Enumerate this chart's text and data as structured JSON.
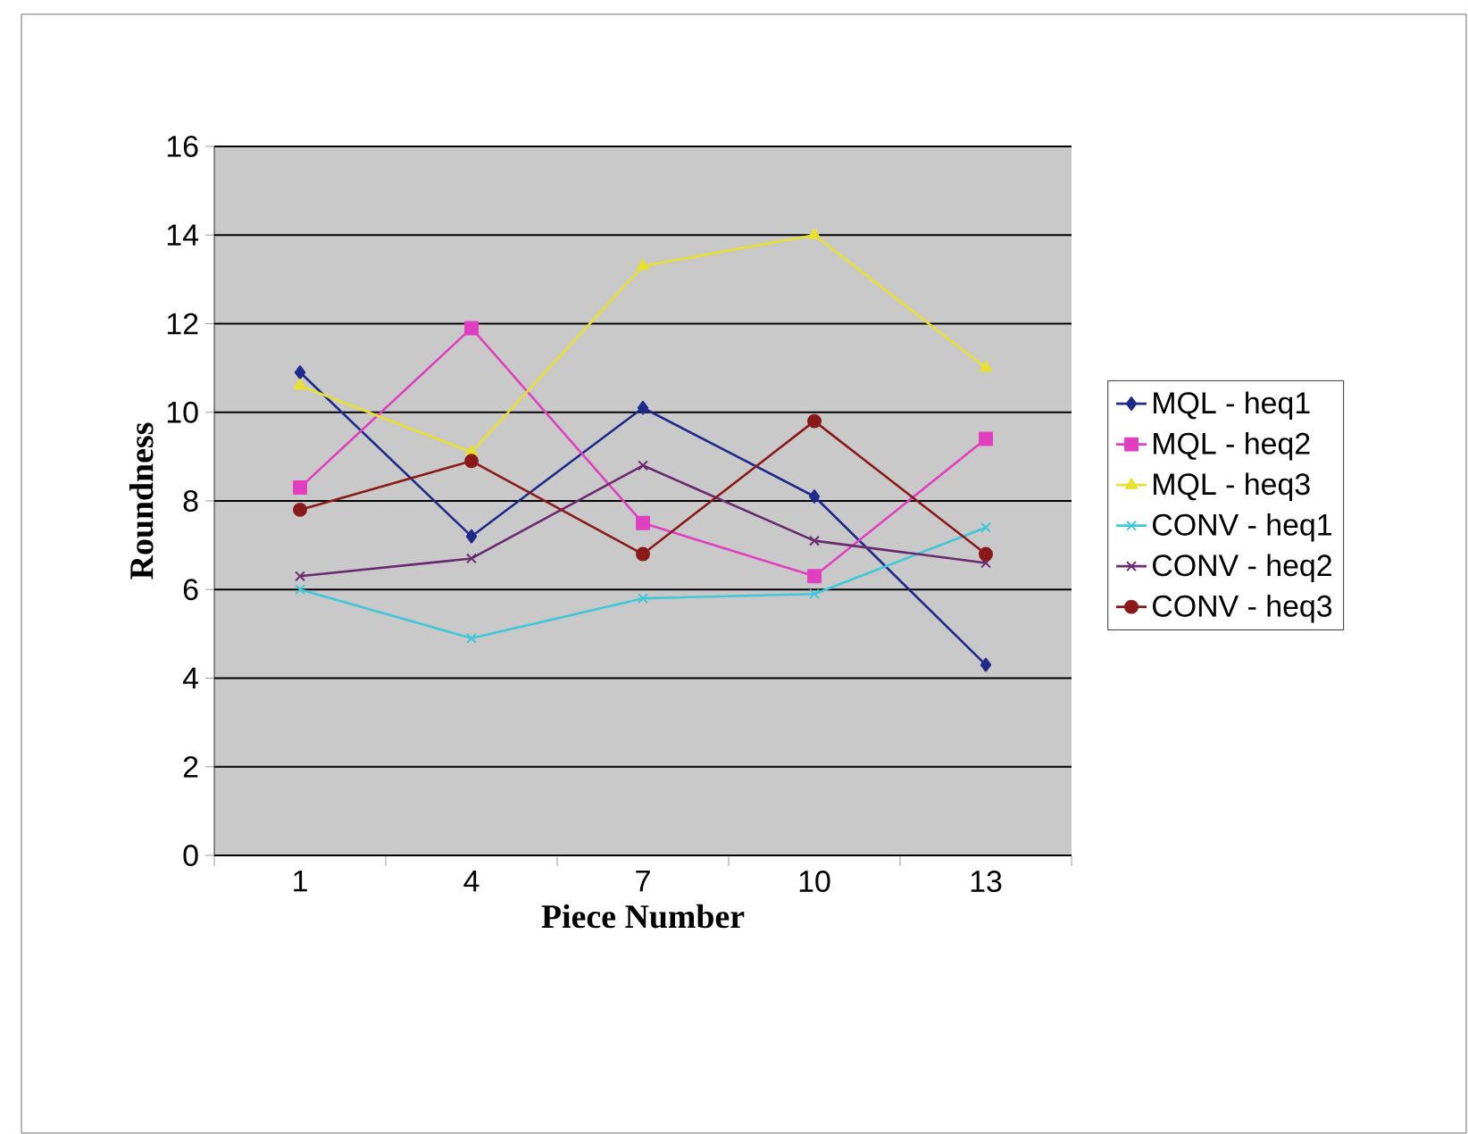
{
  "chart_data": {
    "type": "line",
    "xlabel": "Piece Number",
    "ylabel": "Roundness",
    "categories": [
      "1",
      "4",
      "7",
      "10",
      "13"
    ],
    "series": [
      {
        "name": "MQL - heq1",
        "color": "#1f2a8a",
        "marker": "diamond",
        "values": [
          10.9,
          7.2,
          10.1,
          8.1,
          4.3
        ]
      },
      {
        "name": "MQL - heq2",
        "color": "#e040c0",
        "marker": "square",
        "values": [
          8.3,
          11.9,
          7.5,
          6.3,
          9.4
        ]
      },
      {
        "name": "MQL - heq3",
        "color": "#e8e030",
        "marker": "triangle",
        "values": [
          10.6,
          9.1,
          13.3,
          14.0,
          11.0
        ]
      },
      {
        "name": "CONV - heq1",
        "color": "#40c8d8",
        "marker": "cross",
        "values": [
          6.0,
          4.9,
          5.8,
          5.9,
          7.4
        ]
      },
      {
        "name": "CONV - heq2",
        "color": "#6a2a70",
        "marker": "cross",
        "values": [
          6.3,
          6.7,
          8.8,
          7.1,
          6.6
        ]
      },
      {
        "name": "CONV - heq3",
        "color": "#8a1a1a",
        "marker": "circle",
        "values": [
          7.8,
          8.9,
          6.8,
          9.8,
          6.8
        ]
      }
    ],
    "ylim": [
      0,
      16
    ],
    "yticks": [
      0,
      2,
      4,
      6,
      8,
      10,
      12,
      14,
      16
    ],
    "grid": "y",
    "legend": "right"
  }
}
